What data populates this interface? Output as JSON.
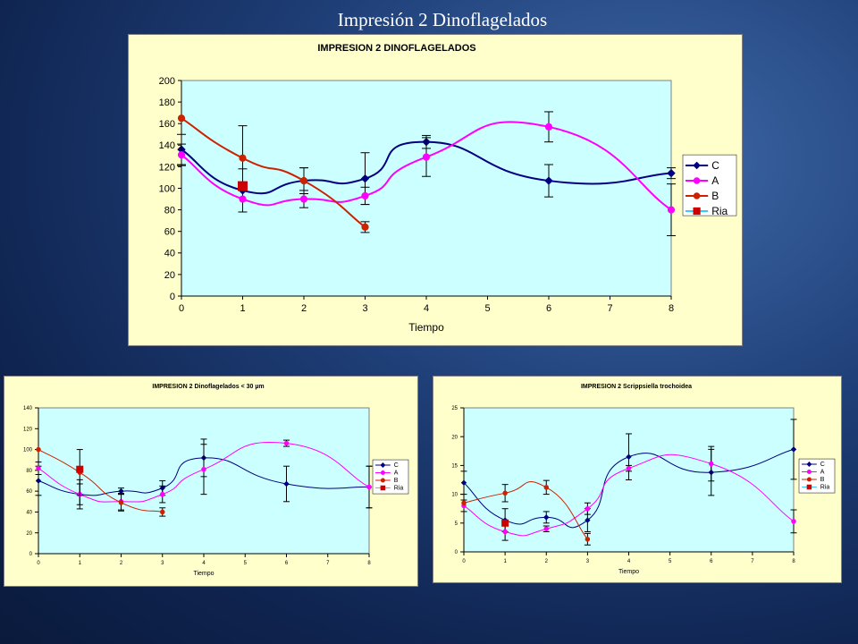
{
  "slide": {
    "title": "Impresión 2 Dinoflagelados"
  },
  "chart_data": [
    {
      "type": "line",
      "title": "IMPRESION 2 DINOFLAGELADOS",
      "xlabel": "Tiempo",
      "ylabel": "",
      "xlim": [
        0,
        8
      ],
      "ylim": [
        0,
        200
      ],
      "xticks": [
        "0",
        "1",
        "2",
        "3",
        "4",
        "5",
        "6",
        "7",
        "8"
      ],
      "yticks": [
        "0",
        "20",
        "40",
        "60",
        "80",
        "100",
        "120",
        "140",
        "160",
        "180",
        "200"
      ],
      "grid": false,
      "plot_bg": "#ccffff",
      "legend_position": "right",
      "series": [
        {
          "name": "C",
          "color": "#000080",
          "marker": "diamond",
          "points": [
            [
              0,
              136
            ],
            [
              1,
              98
            ],
            [
              2,
              107
            ],
            [
              3,
              109
            ],
            [
              4,
              143
            ],
            [
              6,
              107
            ],
            [
              8,
              114
            ]
          ],
          "errors": [
            14,
            20,
            12,
            24,
            6,
            15,
            5
          ]
        },
        {
          "name": "A",
          "color": "#ff00ff",
          "marker": "circle",
          "points": [
            [
              0,
              131
            ],
            [
              1,
              90
            ],
            [
              2,
              90
            ],
            [
              3,
              93
            ],
            [
              4,
              129
            ],
            [
              6,
              157
            ],
            [
              8,
              80
            ]
          ],
          "errors": [
            10,
            12,
            8,
            8,
            18,
            14,
            24
          ]
        },
        {
          "name": "B",
          "color": "#cc2200",
          "marker": "circle",
          "points": [
            [
              0,
              165
            ],
            [
              1,
              128
            ],
            [
              2,
              107
            ],
            [
              3,
              64
            ]
          ],
          "errors": [
            0,
            30,
            12,
            5
          ]
        },
        {
          "name": "Ria",
          "color": "#33ccff",
          "marker": "square",
          "points": [
            [
              1,
              102
            ]
          ],
          "errors": [
            0
          ]
        }
      ]
    },
    {
      "type": "line",
      "title": "IMPRESION 2 Dinoflagelados < 30 µm",
      "xlabel": "Tiempo",
      "ylabel": "",
      "xlim": [
        0,
        8
      ],
      "ylim": [
        0,
        140
      ],
      "xticks": [
        "0",
        "1",
        "2",
        "3",
        "4",
        "5",
        "6",
        "7",
        "8"
      ],
      "yticks": [
        "0",
        "20",
        "40",
        "60",
        "80",
        "100",
        "120",
        "140"
      ],
      "grid": false,
      "plot_bg": "#ccffff",
      "legend_position": "right",
      "series": [
        {
          "name": "C",
          "color": "#000080",
          "marker": "diamond",
          "points": [
            [
              0,
              70
            ],
            [
              1,
              57
            ],
            [
              2,
              60
            ],
            [
              3,
              63
            ],
            [
              4,
              92
            ],
            [
              6,
              67
            ],
            [
              8,
              64
            ]
          ],
          "errors": [
            14,
            14,
            3,
            7,
            18,
            17,
            20
          ]
        },
        {
          "name": "A",
          "color": "#ff00ff",
          "marker": "circle",
          "points": [
            [
              0,
              82
            ],
            [
              1,
              57
            ],
            [
              2,
              50
            ],
            [
              3,
              57
            ],
            [
              4,
              81
            ],
            [
              6,
              106
            ],
            [
              8,
              64
            ]
          ],
          "errors": [
            6,
            10,
            8,
            8,
            24,
            3,
            20
          ]
        },
        {
          "name": "B",
          "color": "#cc2200",
          "marker": "circle",
          "points": [
            [
              0,
              100
            ],
            [
              1,
              78
            ],
            [
              2,
              49
            ],
            [
              3,
              40
            ]
          ],
          "errors": [
            0,
            22,
            8,
            4
          ]
        },
        {
          "name": "Ria",
          "color": "#33ccff",
          "marker": "square",
          "points": [
            [
              1,
              81
            ]
          ],
          "errors": [
            0
          ]
        }
      ]
    },
    {
      "type": "line",
      "title": "IMPRESION 2 Scrippsiella trochoidea",
      "xlabel": "Tiempo",
      "ylabel": "",
      "xlim": [
        0,
        8
      ],
      "ylim": [
        0,
        25
      ],
      "xticks": [
        "0",
        "1",
        "2",
        "3",
        "4",
        "5",
        "6",
        "7",
        "8"
      ],
      "yticks": [
        "0",
        "5",
        "10",
        "15",
        "20",
        "25"
      ],
      "grid": false,
      "plot_bg": "#ccffff",
      "legend_position": "right",
      "series": [
        {
          "name": "C",
          "color": "#000080",
          "marker": "diamond",
          "points": [
            [
              0,
              12
            ],
            [
              1,
              5.5
            ],
            [
              2,
              6
            ],
            [
              3,
              5.5
            ],
            [
              4,
              16.5
            ],
            [
              6,
              13.8
            ],
            [
              8,
              17.8
            ]
          ],
          "errors": [
            2,
            2,
            1,
            2,
            4,
            4,
            5.2
          ]
        },
        {
          "name": "A",
          "color": "#ff00ff",
          "marker": "circle",
          "points": [
            [
              0,
              8
            ],
            [
              1,
              3.5
            ],
            [
              2,
              4
            ],
            [
              3,
              7.5
            ],
            [
              4,
              14.5
            ],
            [
              6,
              15.3
            ],
            [
              8,
              5.3
            ]
          ],
          "errors": [
            1,
            1.5,
            0.5,
            1,
            0.5,
            3,
            2
          ]
        },
        {
          "name": "B",
          "color": "#cc2200",
          "marker": "circle",
          "points": [
            [
              0,
              8.5
            ],
            [
              1,
              10.2
            ],
            [
              2,
              11.2
            ],
            [
              3,
              2.2
            ]
          ],
          "errors": [
            0,
            1.5,
            1.2,
            1
          ]
        },
        {
          "name": "Ria",
          "color": "#33ccff",
          "marker": "square",
          "points": [
            [
              1,
              5
            ]
          ],
          "errors": [
            0
          ]
        }
      ]
    }
  ]
}
